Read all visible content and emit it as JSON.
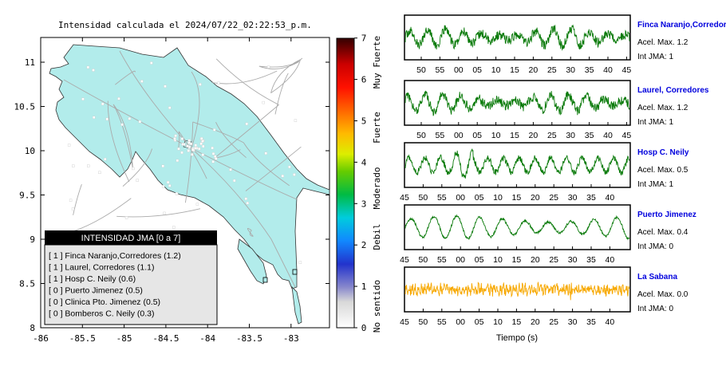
{
  "title": "Intensidad calculada el 2024/07/22_02:22:53_p.m.",
  "colors": {
    "land": "#b2eceb",
    "road": "#aaaaaa",
    "trace_green": "#0a7a0a",
    "trace_orange": "#f7a800",
    "station_name": "#0000dd",
    "legend_header_bg": "#000000",
    "legend_body_bg": "#e6e6e6"
  },
  "map": {
    "xlabels": [
      "-86",
      "-85.5",
      "-85",
      "-84.5",
      "-84",
      "-83.5",
      "-83"
    ],
    "ylabels": [
      "11",
      "10.5",
      "10",
      "9.5",
      "9",
      "8.5",
      "8"
    ],
    "xrange": [
      -86,
      -82.6
    ],
    "yrange": [
      8,
      11.3
    ]
  },
  "colorbar": {
    "ticks": [
      "0",
      "1",
      "2",
      "3",
      "4",
      "5",
      "6",
      "7"
    ],
    "categories": [
      "No sentido",
      "Debil",
      "Moderado",
      "Fuerte",
      "Muy Fuerte"
    ]
  },
  "legend": {
    "title": "INTENSIDAD JMA [0 a 7]",
    "items": [
      "[ 1 ]  Finca Naranjo,Corredores (1.2)",
      "[ 1 ]  Laurel, Corredores (1.1)",
      "[ 1 ]  Hosp C. Neily (0.6)",
      "[ 0 ]  Puerto Jimenez (0.5)",
      "[ 0 ]  Clinica Pto. Jimenez (0.5)",
      "[ 0 ]  Bomberos C. Neily (0.3)"
    ]
  },
  "traces_xlabel": "Tiempo (s)",
  "chart_data": [
    {
      "type": "line",
      "title": "Intensidad calculada el 2024/07/22_02:22:53_p.m.",
      "description_note": "",
      "xlim": [
        -86,
        -82.6
      ],
      "ylim": [
        8,
        11.3
      ]
    },
    {
      "type": "line",
      "name": "Finca Naranjo,Corredor",
      "accel_label": "Acel. Max. 1.2",
      "int_label": "Int JMA: 1",
      "ticks": [
        "50",
        "55",
        "00",
        "05",
        "10",
        "15",
        "20",
        "25",
        "30",
        "35",
        "40",
        "45"
      ],
      "color": "#0a7a0a",
      "amplitude": 1.2
    },
    {
      "type": "line",
      "name": "Laurel, Corredores",
      "accel_label": "Acel. Max. 1.2",
      "int_label": "Int JMA: 1",
      "ticks": [
        "50",
        "55",
        "00",
        "05",
        "10",
        "15",
        "20",
        "25",
        "30",
        "35",
        "40",
        "45"
      ],
      "color": "#0a7a0a",
      "amplitude": 1.2
    },
    {
      "type": "line",
      "name": "Hosp C. Neily",
      "accel_label": "Acel. Max. 0.5",
      "int_label": "Int JMA: 1",
      "ticks": [
        "45",
        "50",
        "55",
        "00",
        "05",
        "10",
        "15",
        "20",
        "25",
        "30",
        "35",
        "40"
      ],
      "color": "#0a7a0a",
      "amplitude": 0.5
    },
    {
      "type": "line",
      "name": "Puerto Jimenez",
      "accel_label": "Acel. Max. 0.4",
      "int_label": "Int JMA: 0",
      "ticks": [
        "45",
        "50",
        "55",
        "00",
        "05",
        "10",
        "15",
        "20",
        "25",
        "30",
        "35",
        "40"
      ],
      "color": "#0a7a0a",
      "amplitude": 0.4
    },
    {
      "type": "line",
      "name": "La Sabana",
      "accel_label": "Acel. Max. 0.0",
      "int_label": "Int JMA: 0",
      "ticks": [
        "45",
        "50",
        "55",
        "00",
        "05",
        "10",
        "15",
        "20",
        "25",
        "30",
        "35",
        "40"
      ],
      "color": "#f7a800",
      "amplitude": 0.0
    }
  ]
}
